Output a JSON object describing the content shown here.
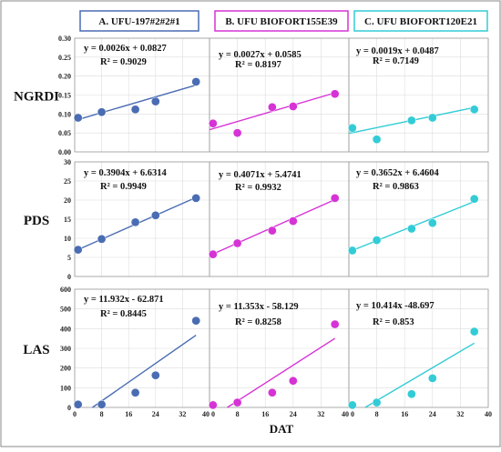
{
  "chart_data": {
    "type": "scatter",
    "xlabel": "DAT",
    "xlim": [
      0,
      40
    ],
    "xticks": [
      0,
      8,
      16,
      24,
      32,
      40
    ],
    "x_tick_labels": [
      "0",
      "8",
      "16",
      "24",
      "32",
      "40"
    ],
    "columns": [
      {
        "title": "A. UFU-197#2#2#1",
        "color": "#4A6CB3"
      },
      {
        "title": "B. UFU BIOFORT155E39",
        "color": "#D633D6"
      },
      {
        "title": "C. UFU BIOFORT120E21",
        "color": "#33CCD6"
      }
    ],
    "rows": [
      {
        "label": "NGRDI",
        "ylim": [
          0,
          0.3
        ],
        "yticks": [
          "0.00",
          "0.05",
          "0.10",
          "0.15",
          "0.20",
          "0.25",
          "0.30"
        ],
        "panels": [
          {
            "x": [
              1,
              8,
              18,
              24,
              36
            ],
            "y": [
              0.09,
              0.105,
              0.112,
              0.133,
              0.185
            ],
            "slope": 0.0026,
            "intercept": 0.0827,
            "equation": "y = 0.0026x + 0.0827",
            "r2": "R² = 0.9029"
          },
          {
            "x": [
              1,
              8,
              18,
              24,
              36
            ],
            "y": [
              0.075,
              0.05,
              0.118,
              0.12,
              0.153
            ],
            "slope": 0.0027,
            "intercept": 0.0585,
            "equation": "y = 0.0027x + 0.0585",
            "r2": "R² = 0.8197"
          },
          {
            "x": [
              1,
              8,
              18,
              24,
              36
            ],
            "y": [
              0.063,
              0.033,
              0.083,
              0.09,
              0.112
            ],
            "slope": 0.0019,
            "intercept": 0.0487,
            "equation": "y = 0.0019x + 0.0487",
            "r2": "R² = 0.7149"
          }
        ]
      },
      {
        "label": "PDS",
        "ylim": [
          0,
          30
        ],
        "yticks": [
          "0",
          "5",
          "10",
          "15",
          "20",
          "25",
          "30"
        ],
        "panels": [
          {
            "x": [
              1,
              8,
              18,
              24,
              36
            ],
            "y": [
              7.0,
              9.8,
              14.2,
              16.0,
              20.5
            ],
            "slope": 0.3904,
            "intercept": 6.6314,
            "equation": "y = 0.3904x + 6.6314",
            "r2": "R² = 0.9949"
          },
          {
            "x": [
              1,
              8,
              18,
              24,
              36
            ],
            "y": [
              5.8,
              8.7,
              12.0,
              14.5,
              20.5
            ],
            "slope": 0.4071,
            "intercept": 5.4741,
            "equation": "y = 0.4071x + 5.4741",
            "r2": "R² = 0.9932"
          },
          {
            "x": [
              1,
              8,
              18,
              24,
              36
            ],
            "y": [
              6.8,
              9.5,
              12.5,
              14.0,
              20.3
            ],
            "slope": 0.3652,
            "intercept": 6.4604,
            "equation": "y = 0.3652x + 6.4604",
            "r2": "R² = 0.9863"
          }
        ]
      },
      {
        "label": "LAS",
        "ylim": [
          0,
          600
        ],
        "yticks": [
          "0",
          "100",
          "200",
          "300",
          "400",
          "500",
          "600"
        ],
        "panels": [
          {
            "x": [
              1,
              8,
              18,
              24,
              36
            ],
            "y": [
              15,
              15,
              75,
              163,
              440
            ],
            "slope": 11.932,
            "intercept": -62.871,
            "equation": "y = 11.932x - 62.871",
            "r2": "R² = 0.8445"
          },
          {
            "x": [
              1,
              8,
              18,
              24,
              36
            ],
            "y": [
              12,
              25,
              75,
              135,
              422
            ],
            "slope": 11.353,
            "intercept": -58.129,
            "equation": "y = 11.353x - 58.129",
            "r2": "R² = 0.8258"
          },
          {
            "x": [
              1,
              8,
              18,
              24,
              36
            ],
            "y": [
              12,
              25,
              68,
              148,
              385
            ],
            "slope": 10.414,
            "intercept": -48.697,
            "equation": "y = 10.414x -48.697",
            "r2": "R² = 0.853"
          }
        ]
      }
    ]
  }
}
